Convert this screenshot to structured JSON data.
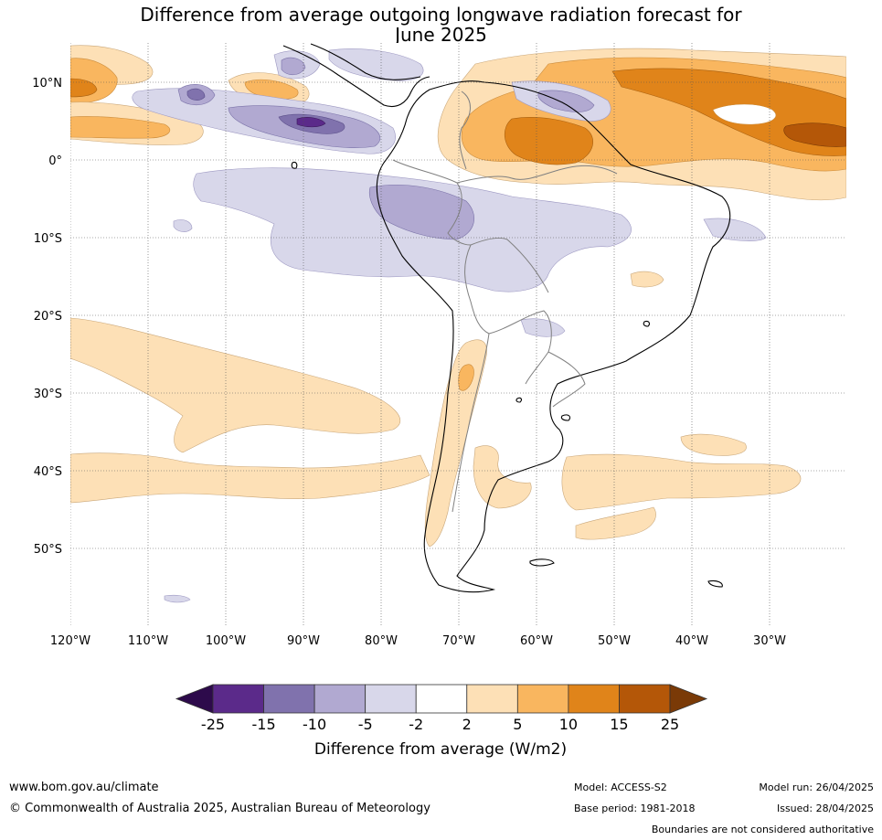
{
  "title": {
    "line1": "Difference from average outgoing longwave radiation forecast for",
    "line2": "June 2025"
  },
  "lat_labels": [
    "10°N",
    "0°",
    "10°S",
    "20°S",
    "30°S",
    "40°S",
    "50°S"
  ],
  "lon_labels": [
    "120°W",
    "110°W",
    "100°W",
    "90°W",
    "80°W",
    "70°W",
    "60°W",
    "50°W",
    "40°W",
    "30°W"
  ],
  "colorbar": {
    "ticks": [
      "-25",
      "-15",
      "-10",
      "-5",
      "-2",
      "2",
      "5",
      "10",
      "15",
      "25"
    ],
    "colors": [
      "#2d0a4b",
      "#5b2a8a",
      "#8072ad",
      "#b1a9d1",
      "#d8d7ea",
      "#ffffff",
      "#fde0b6",
      "#f9b65f",
      "#e0841a",
      "#b45708",
      "#7a3a07"
    ],
    "label": "Difference from average (W/m2)"
  },
  "footer": {
    "website": "www.bom.gov.au/climate",
    "copyright": "© Commonwealth of Australia 2025, Australian Bureau of Meteorology",
    "model": "Model: ACCESS-S2",
    "base_period": "Base period: 1981-2018",
    "model_run": "Model run: 26/04/2025",
    "issued": "Issued: 28/04/2025",
    "disclaimer": "Boundaries are not considered authoritative"
  }
}
